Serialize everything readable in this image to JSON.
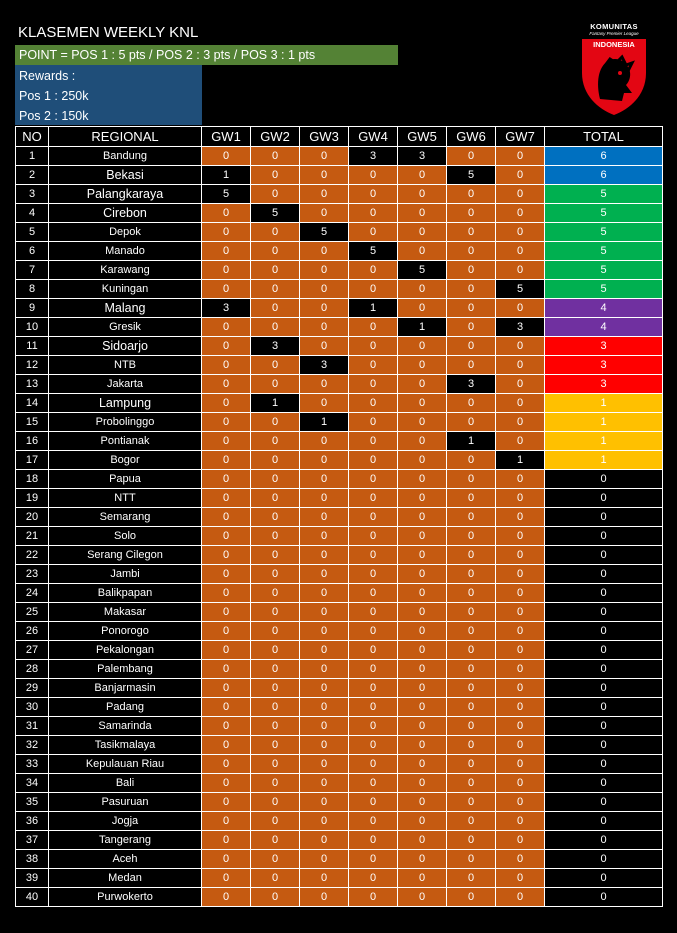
{
  "title": "KLASEMEN WEEKLY KNL",
  "point_rule": "POINT = POS 1 : 5 pts / POS 2 : 3 pts / POS 3 : 1 pts",
  "rewards": [
    "Rewards :",
    "Pos 1 : 250k",
    "Pos 2 : 150k"
  ],
  "logo": {
    "line1": "KOMUNITAS",
    "line2": "Fantasy Premier League",
    "line3": "INDONESIA"
  },
  "colors": {
    "gw_cell": "#c55a11",
    "point_bar": "#548235",
    "rewards_box": "#1f4e79",
    "total_6": "#0070c0",
    "total_5": "#00b050",
    "total_4": "#7030a0",
    "total_3": "#ff0000",
    "total_1": "#ffc000",
    "total_0": "#000000"
  },
  "headers": [
    "NO",
    "REGIONAL",
    "GW1",
    "GW2",
    "GW3",
    "GW4",
    "GW5",
    "GW6",
    "GW7",
    "TOTAL"
  ],
  "rows": [
    {
      "no": "1",
      "region": "Bandung",
      "gw": [
        "0",
        "0",
        "0",
        "3",
        "3",
        "0",
        "0"
      ],
      "total": "6"
    },
    {
      "no": "2",
      "region": "Bekasi",
      "gw": [
        "1",
        "0",
        "0",
        "0",
        "0",
        "5",
        "0"
      ],
      "total": "6"
    },
    {
      "no": "3",
      "region": "Palangkaraya",
      "gw": [
        "5",
        "0",
        "0",
        "0",
        "0",
        "0",
        "0"
      ],
      "total": "5"
    },
    {
      "no": "4",
      "region": "Cirebon",
      "gw": [
        "0",
        "5",
        "0",
        "0",
        "0",
        "0",
        "0"
      ],
      "total": "5"
    },
    {
      "no": "5",
      "region": "Depok",
      "gw": [
        "0",
        "0",
        "5",
        "0",
        "0",
        "0",
        "0"
      ],
      "total": "5"
    },
    {
      "no": "6",
      "region": "Manado",
      "gw": [
        "0",
        "0",
        "0",
        "5",
        "0",
        "0",
        "0"
      ],
      "total": "5"
    },
    {
      "no": "7",
      "region": "Karawang",
      "gw": [
        "0",
        "0",
        "0",
        "0",
        "5",
        "0",
        "0"
      ],
      "total": "5"
    },
    {
      "no": "8",
      "region": "Kuningan",
      "gw": [
        "0",
        "0",
        "0",
        "0",
        "0",
        "0",
        "5"
      ],
      "total": "5"
    },
    {
      "no": "9",
      "region": "Malang",
      "gw": [
        "3",
        "0",
        "0",
        "1",
        "0",
        "0",
        "0"
      ],
      "total": "4"
    },
    {
      "no": "10",
      "region": "Gresik",
      "gw": [
        "0",
        "0",
        "0",
        "0",
        "1",
        "0",
        "3"
      ],
      "total": "4"
    },
    {
      "no": "11",
      "region": "Sidoarjo",
      "gw": [
        "0",
        "3",
        "0",
        "0",
        "0",
        "0",
        "0"
      ],
      "total": "3"
    },
    {
      "no": "12",
      "region": "NTB",
      "gw": [
        "0",
        "0",
        "3",
        "0",
        "0",
        "0",
        "0"
      ],
      "total": "3"
    },
    {
      "no": "13",
      "region": "Jakarta",
      "gw": [
        "0",
        "0",
        "0",
        "0",
        "0",
        "3",
        "0"
      ],
      "total": "3"
    },
    {
      "no": "14",
      "region": "Lampung",
      "gw": [
        "0",
        "1",
        "0",
        "0",
        "0",
        "0",
        "0"
      ],
      "total": "1"
    },
    {
      "no": "15",
      "region": "Probolinggo",
      "gw": [
        "0",
        "0",
        "1",
        "0",
        "0",
        "0",
        "0"
      ],
      "total": "1"
    },
    {
      "no": "16",
      "region": "Pontianak",
      "gw": [
        "0",
        "0",
        "0",
        "0",
        "0",
        "1",
        "0"
      ],
      "total": "1"
    },
    {
      "no": "17",
      "region": "Bogor",
      "gw": [
        "0",
        "0",
        "0",
        "0",
        "0",
        "0",
        "1"
      ],
      "total": "1"
    },
    {
      "no": "18",
      "region": "Papua",
      "gw": [
        "0",
        "0",
        "0",
        "0",
        "0",
        "0",
        "0"
      ],
      "total": "0"
    },
    {
      "no": "19",
      "region": "NTT",
      "gw": [
        "0",
        "0",
        "0",
        "0",
        "0",
        "0",
        "0"
      ],
      "total": "0"
    },
    {
      "no": "20",
      "region": "Semarang",
      "gw": [
        "0",
        "0",
        "0",
        "0",
        "0",
        "0",
        "0"
      ],
      "total": "0"
    },
    {
      "no": "21",
      "region": "Solo",
      "gw": [
        "0",
        "0",
        "0",
        "0",
        "0",
        "0",
        "0"
      ],
      "total": "0"
    },
    {
      "no": "22",
      "region": "Serang Cilegon",
      "gw": [
        "0",
        "0",
        "0",
        "0",
        "0",
        "0",
        "0"
      ],
      "total": "0"
    },
    {
      "no": "23",
      "region": "Jambi",
      "gw": [
        "0",
        "0",
        "0",
        "0",
        "0",
        "0",
        "0"
      ],
      "total": "0"
    },
    {
      "no": "24",
      "region": "Balikpapan",
      "gw": [
        "0",
        "0",
        "0",
        "0",
        "0",
        "0",
        "0"
      ],
      "total": "0"
    },
    {
      "no": "25",
      "region": "Makasar",
      "gw": [
        "0",
        "0",
        "0",
        "0",
        "0",
        "0",
        "0"
      ],
      "total": "0"
    },
    {
      "no": "26",
      "region": "Ponorogo",
      "gw": [
        "0",
        "0",
        "0",
        "0",
        "0",
        "0",
        "0"
      ],
      "total": "0"
    },
    {
      "no": "27",
      "region": "Pekalongan",
      "gw": [
        "0",
        "0",
        "0",
        "0",
        "0",
        "0",
        "0"
      ],
      "total": "0"
    },
    {
      "no": "28",
      "region": "Palembang",
      "gw": [
        "0",
        "0",
        "0",
        "0",
        "0",
        "0",
        "0"
      ],
      "total": "0"
    },
    {
      "no": "29",
      "region": "Banjarmasin",
      "gw": [
        "0",
        "0",
        "0",
        "0",
        "0",
        "0",
        "0"
      ],
      "total": "0"
    },
    {
      "no": "30",
      "region": "Padang",
      "gw": [
        "0",
        "0",
        "0",
        "0",
        "0",
        "0",
        "0"
      ],
      "total": "0"
    },
    {
      "no": "31",
      "region": "Samarinda",
      "gw": [
        "0",
        "0",
        "0",
        "0",
        "0",
        "0",
        "0"
      ],
      "total": "0"
    },
    {
      "no": "32",
      "region": "Tasikmalaya",
      "gw": [
        "0",
        "0",
        "0",
        "0",
        "0",
        "0",
        "0"
      ],
      "total": "0"
    },
    {
      "no": "33",
      "region": "Kepulauan Riau",
      "gw": [
        "0",
        "0",
        "0",
        "0",
        "0",
        "0",
        "0"
      ],
      "total": "0"
    },
    {
      "no": "34",
      "region": "Bali",
      "gw": [
        "0",
        "0",
        "0",
        "0",
        "0",
        "0",
        "0"
      ],
      "total": "0"
    },
    {
      "no": "35",
      "region": "Pasuruan",
      "gw": [
        "0",
        "0",
        "0",
        "0",
        "0",
        "0",
        "0"
      ],
      "total": "0"
    },
    {
      "no": "36",
      "region": "Jogja",
      "gw": [
        "0",
        "0",
        "0",
        "0",
        "0",
        "0",
        "0"
      ],
      "total": "0"
    },
    {
      "no": "37",
      "region": "Tangerang",
      "gw": [
        "0",
        "0",
        "0",
        "0",
        "0",
        "0",
        "0"
      ],
      "total": "0"
    },
    {
      "no": "38",
      "region": "Aceh",
      "gw": [
        "0",
        "0",
        "0",
        "0",
        "0",
        "0",
        "0"
      ],
      "total": "0"
    },
    {
      "no": "39",
      "region": "Medan",
      "gw": [
        "0",
        "0",
        "0",
        "0",
        "0",
        "0",
        "0"
      ],
      "total": "0"
    },
    {
      "no": "40",
      "region": "Purwokerto",
      "gw": [
        "0",
        "0",
        "0",
        "0",
        "0",
        "0",
        "0"
      ],
      "total": "0"
    }
  ]
}
